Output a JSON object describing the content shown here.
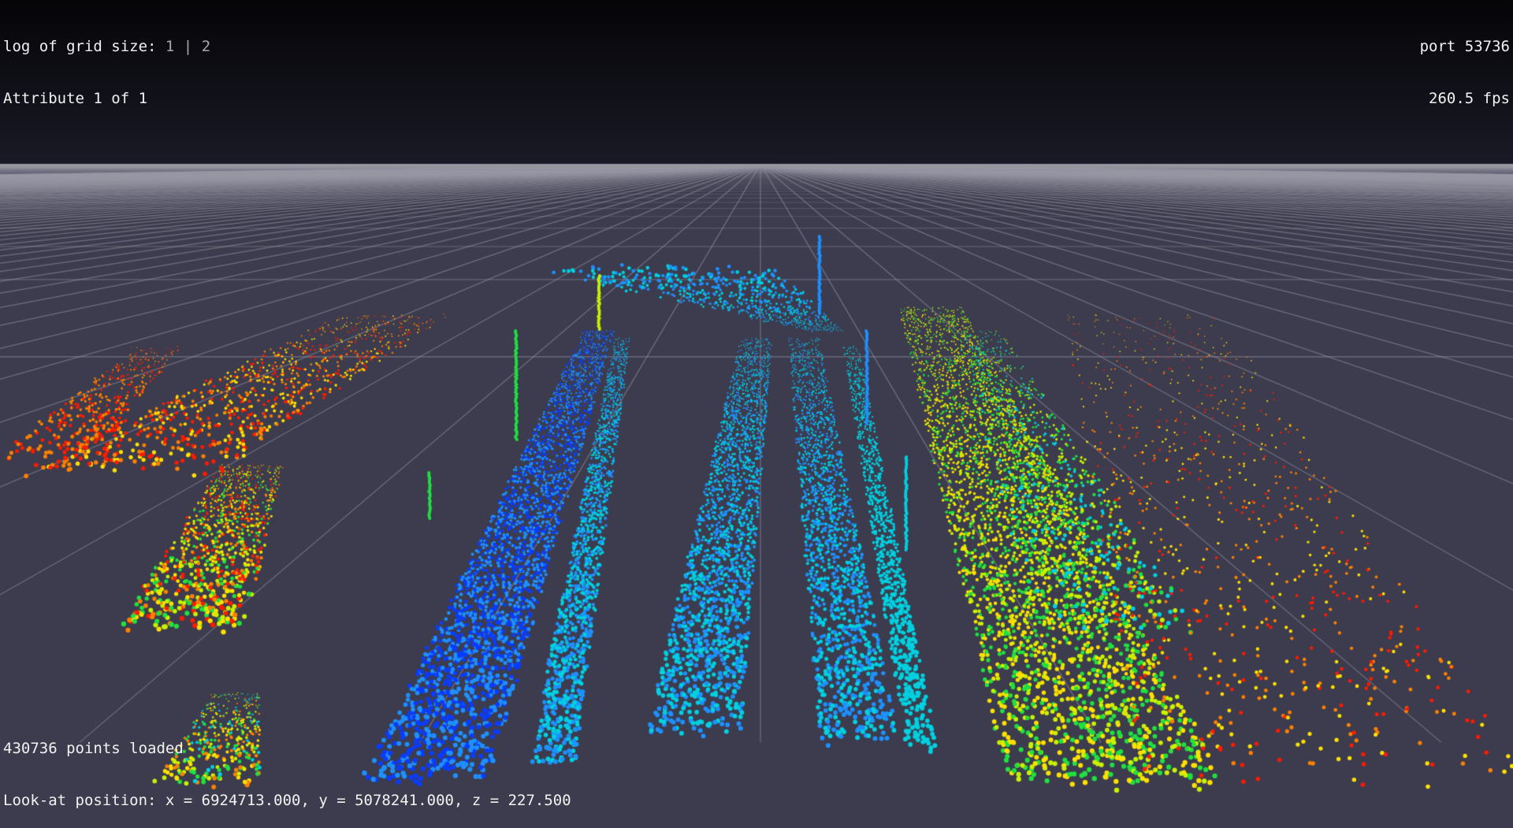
{
  "hud": {
    "grid_size_label": "log of grid size: ",
    "grid_size_options": [
      "1",
      "2"
    ],
    "grid_size_separator": " | ",
    "attribute_label": "Attribute 1 of 1",
    "port_label": "port 53736",
    "fps_label": "260.5 fps",
    "points_loaded_label": "430736 points loaded",
    "look_at_label": "Look-at position: x = 6924713.000, y = 5078241.000, z = 227.500"
  },
  "colors": {
    "sky_top": "#050508",
    "sky_horizon": "#1a1a26",
    "ground": "#3c3c4e",
    "grid_line": "#9a9aa8",
    "hud_text": "#f2f2f2",
    "hud_dim_text": "#a9a9a9",
    "colormap": [
      "#0a3cff",
      "#1e90ff",
      "#00d0e0",
      "#20e040",
      "#c8f000",
      "#ffe000",
      "#ff8000",
      "#ff1a00"
    ]
  },
  "scene": {
    "description_icon": "point-cloud-scene"
  }
}
